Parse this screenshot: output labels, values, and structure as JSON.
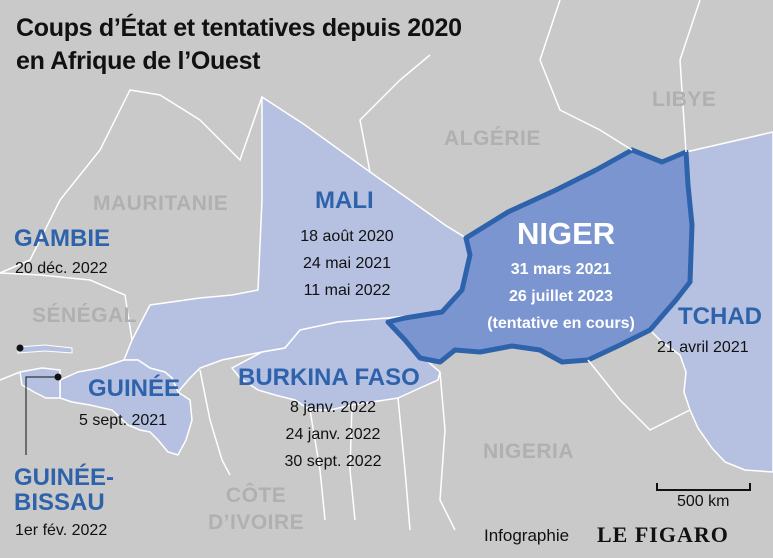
{
  "title": [
    "Coups d’État et tentatives depuis 2020",
    "en Afrique de l’Ouest"
  ],
  "colors": {
    "background": "#c9c9c9",
    "land": "#c4c4c4",
    "affected": "#b6c1e2",
    "niger": "#7b95d0",
    "niger_border": "#2e63ab",
    "label_blue": "#2e63ab"
  },
  "neighbors": {
    "libye": "LIBYE",
    "algerie": "ALGÉRIE",
    "mauritanie": "MAURITANIE",
    "senegal": "SÉNÉGAL",
    "nigeria": "NIGERIA",
    "cote_line1": "CÔTE",
    "cote_line2": "D’IVOIRE"
  },
  "countries": {
    "mali": {
      "name": "MALI",
      "dates": [
        "18 août 2020",
        "24 mai 2021",
        "11 mai 2022"
      ]
    },
    "niger": {
      "name": "NIGER",
      "dates": [
        "31 mars 2021",
        "26 juillet 2023",
        "(tentative en cours)"
      ]
    },
    "tchad": {
      "name": "TCHAD",
      "dates": [
        "21 avril 2021"
      ]
    },
    "burkina": {
      "name": "BURKINA FASO",
      "dates": [
        "8 janv. 2022",
        "24 janv. 2022",
        "30 sept. 2022"
      ]
    },
    "guinee": {
      "name": "GUINÉE",
      "dates": [
        "5 sept. 2021"
      ]
    },
    "gambie": {
      "name": "GAMBIE",
      "dates": [
        "20 déc. 2022"
      ]
    },
    "guinee_bissau": {
      "name_line1": "GUINÉE-",
      "name_line2": "BISSAU",
      "dates": [
        "1er fév. 2022"
      ]
    }
  },
  "scale": "500 km",
  "credit": {
    "label": "Infographie",
    "brand": "LE FIGARO"
  }
}
